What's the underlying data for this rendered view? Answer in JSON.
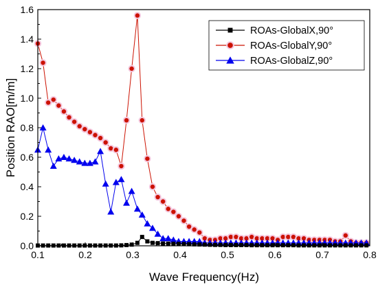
{
  "chart_data": {
    "type": "line",
    "title": "",
    "xlabel": "Wave Frequency(Hz)",
    "ylabel": "Position RAO[m/m]",
    "xlim": [
      0.1,
      0.8
    ],
    "ylim": [
      0.0,
      1.6
    ],
    "xticks": [
      "0.1",
      "0.2",
      "0.3",
      "0.4",
      "0.5",
      "0.6",
      "0.7",
      "0.8"
    ],
    "yticks": [
      "0.0",
      "0.2",
      "0.4",
      "0.6",
      "0.8",
      "1.0",
      "1.2",
      "1.4",
      "1.6"
    ],
    "grid": false,
    "legend_position": "top-right",
    "series": [
      {
        "name": "ROAs-GlobalX,90°",
        "color": "#000000",
        "marker": "square",
        "x": [
          0.1,
          0.111,
          0.122,
          0.133,
          0.144,
          0.155,
          0.166,
          0.177,
          0.188,
          0.199,
          0.21,
          0.221,
          0.232,
          0.243,
          0.254,
          0.265,
          0.276,
          0.287,
          0.298,
          0.31,
          0.32,
          0.331,
          0.342,
          0.353,
          0.364,
          0.375,
          0.386,
          0.397,
          0.408,
          0.419,
          0.43,
          0.441,
          0.452,
          0.463,
          0.474,
          0.485,
          0.496,
          0.507,
          0.518,
          0.529,
          0.54,
          0.551,
          0.562,
          0.573,
          0.584,
          0.595,
          0.606,
          0.617,
          0.628,
          0.639,
          0.65,
          0.661,
          0.672,
          0.683,
          0.694,
          0.705,
          0.716,
          0.727,
          0.738,
          0.749,
          0.76,
          0.771,
          0.782,
          0.793
        ],
        "y": [
          0.002,
          0.002,
          0.002,
          0.002,
          0.002,
          0.002,
          0.002,
          0.002,
          0.002,
          0.002,
          0.002,
          0.002,
          0.002,
          0.002,
          0.002,
          0.002,
          0.003,
          0.005,
          0.008,
          0.02,
          0.06,
          0.03,
          0.02,
          0.018,
          0.016,
          0.015,
          0.014,
          0.013,
          0.012,
          0.011,
          0.01,
          0.009,
          0.008,
          0.007,
          0.006,
          0.006,
          0.005,
          0.005,
          0.005,
          0.005,
          0.005,
          0.004,
          0.004,
          0.004,
          0.004,
          0.004,
          0.004,
          0.004,
          0.004,
          0.004,
          0.003,
          0.003,
          0.003,
          0.003,
          0.003,
          0.003,
          0.003,
          0.003,
          0.003,
          0.003,
          0.003,
          0.003,
          0.003,
          0.003
        ]
      },
      {
        "name": "ROAs-GlobalY,90°",
        "color": "#cc1100",
        "marker": "circle",
        "x": [
          0.1,
          0.111,
          0.122,
          0.133,
          0.144,
          0.155,
          0.166,
          0.177,
          0.188,
          0.199,
          0.21,
          0.221,
          0.232,
          0.243,
          0.254,
          0.265,
          0.276,
          0.287,
          0.298,
          0.31,
          0.32,
          0.331,
          0.342,
          0.353,
          0.364,
          0.375,
          0.386,
          0.397,
          0.408,
          0.419,
          0.43,
          0.441,
          0.452,
          0.463,
          0.474,
          0.485,
          0.496,
          0.507,
          0.518,
          0.529,
          0.54,
          0.551,
          0.562,
          0.573,
          0.584,
          0.595,
          0.606,
          0.617,
          0.628,
          0.639,
          0.65,
          0.661,
          0.672,
          0.683,
          0.694,
          0.705,
          0.716,
          0.727,
          0.738,
          0.749,
          0.76,
          0.771,
          0.782,
          0.793
        ],
        "y": [
          1.37,
          1.24,
          0.97,
          0.99,
          0.95,
          0.91,
          0.87,
          0.84,
          0.81,
          0.79,
          0.77,
          0.75,
          0.73,
          0.7,
          0.66,
          0.65,
          0.54,
          0.85,
          1.2,
          1.56,
          0.85,
          0.59,
          0.4,
          0.33,
          0.3,
          0.25,
          0.23,
          0.2,
          0.17,
          0.13,
          0.11,
          0.09,
          0.05,
          0.04,
          0.04,
          0.05,
          0.05,
          0.06,
          0.06,
          0.05,
          0.05,
          0.06,
          0.05,
          0.05,
          0.05,
          0.05,
          0.04,
          0.06,
          0.06,
          0.06,
          0.05,
          0.05,
          0.04,
          0.04,
          0.04,
          0.04,
          0.04,
          0.03,
          0.03,
          0.07,
          0.03,
          0.02,
          0.02,
          0.02
        ]
      },
      {
        "name": "ROAs-GlobalZ,90°",
        "color": "#0000ee",
        "marker": "triangle",
        "x": [
          0.1,
          0.111,
          0.122,
          0.133,
          0.144,
          0.155,
          0.166,
          0.177,
          0.188,
          0.199,
          0.21,
          0.221,
          0.232,
          0.243,
          0.254,
          0.265,
          0.276,
          0.287,
          0.298,
          0.31,
          0.32,
          0.331,
          0.342,
          0.353,
          0.364,
          0.375,
          0.386,
          0.397,
          0.408,
          0.419,
          0.43,
          0.441,
          0.452,
          0.463,
          0.474,
          0.485,
          0.496,
          0.507,
          0.518,
          0.529,
          0.54,
          0.551,
          0.562,
          0.573,
          0.584,
          0.595,
          0.606,
          0.617,
          0.628,
          0.639,
          0.65,
          0.661,
          0.672,
          0.683,
          0.694,
          0.705,
          0.716,
          0.727,
          0.738,
          0.749,
          0.76,
          0.771,
          0.782,
          0.793
        ],
        "y": [
          0.65,
          0.8,
          0.65,
          0.54,
          0.59,
          0.6,
          0.59,
          0.58,
          0.57,
          0.56,
          0.56,
          0.57,
          0.64,
          0.42,
          0.23,
          0.43,
          0.45,
          0.29,
          0.37,
          0.25,
          0.21,
          0.15,
          0.12,
          0.08,
          0.05,
          0.05,
          0.04,
          0.03,
          0.03,
          0.03,
          0.03,
          0.03,
          0.02,
          0.02,
          0.02,
          0.02,
          0.02,
          0.02,
          0.02,
          0.02,
          0.02,
          0.02,
          0.02,
          0.02,
          0.02,
          0.02,
          0.02,
          0.02,
          0.02,
          0.02,
          0.02,
          0.02,
          0.02,
          0.02,
          0.02,
          0.02,
          0.02,
          0.02,
          0.02,
          0.02,
          0.02,
          0.02,
          0.02,
          0.02
        ]
      }
    ]
  }
}
